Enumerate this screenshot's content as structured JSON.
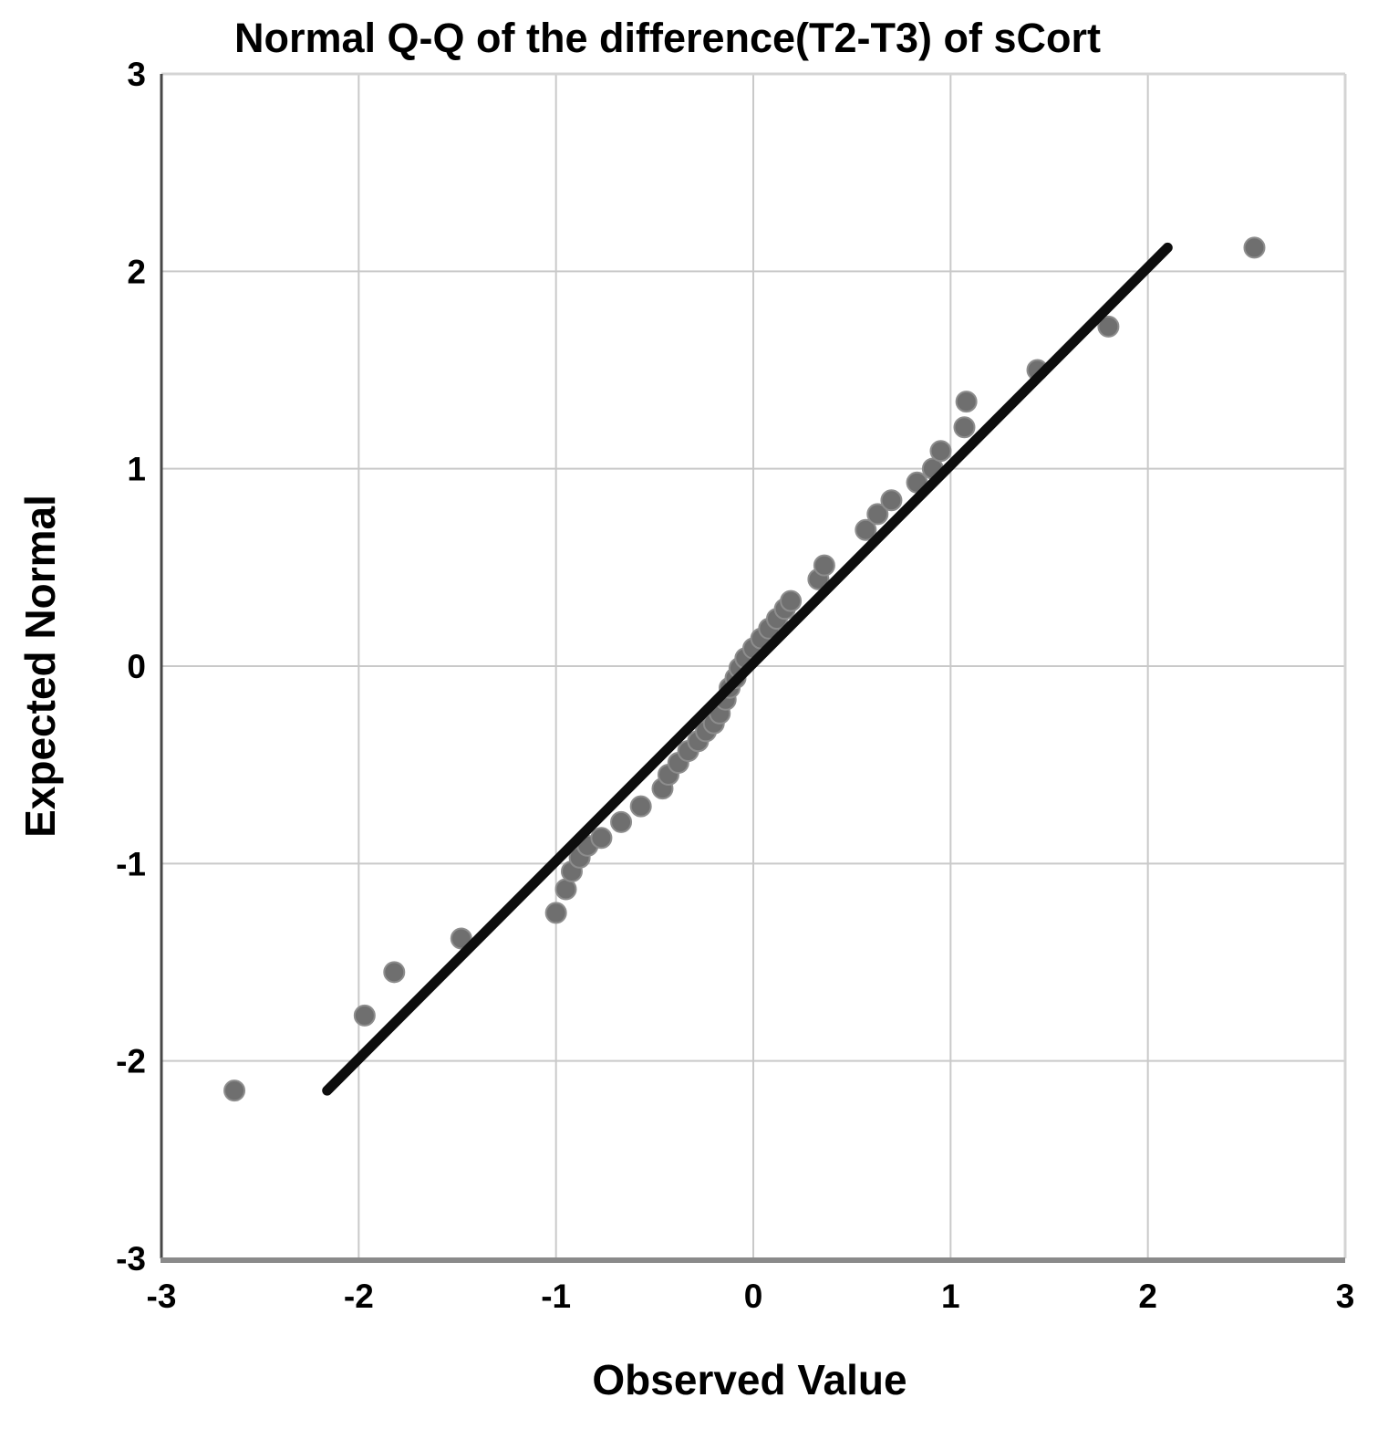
{
  "chart_data": {
    "type": "scatter",
    "title": "Normal Q-Q of the difference(T2-T3) of sCort",
    "xlabel": "Observed Value",
    "ylabel": "Expected Normal",
    "xlim": [
      -3,
      3
    ],
    "ylim": [
      -3,
      3
    ],
    "xticks": [
      "-3",
      "-2",
      "-1",
      "0",
      "1",
      "2",
      "3"
    ],
    "yticks": [
      "-3",
      "-2",
      "-1",
      "0",
      "1",
      "2",
      "3"
    ],
    "grid": true,
    "legend": "none",
    "series": [
      {
        "name": "observed-quantiles",
        "points": [
          [
            -2.63,
            -2.15
          ],
          [
            -1.97,
            -1.77
          ],
          [
            -1.82,
            -1.55
          ],
          [
            -1.48,
            -1.38
          ],
          [
            -1.0,
            -1.25
          ],
          [
            -0.95,
            -1.13
          ],
          [
            -0.92,
            -1.04
          ],
          [
            -0.88,
            -0.97
          ],
          [
            -0.84,
            -0.91
          ],
          [
            -0.77,
            -0.87
          ],
          [
            -0.67,
            -0.79
          ],
          [
            -0.57,
            -0.71
          ],
          [
            -0.46,
            -0.62
          ],
          [
            -0.43,
            -0.55
          ],
          [
            -0.38,
            -0.49
          ],
          [
            -0.33,
            -0.43
          ],
          [
            -0.28,
            -0.38
          ],
          [
            -0.24,
            -0.33
          ],
          [
            -0.2,
            -0.29
          ],
          [
            -0.17,
            -0.24
          ],
          [
            -0.14,
            -0.17
          ],
          [
            -0.12,
            -0.11
          ],
          [
            -0.09,
            -0.06
          ],
          [
            -0.07,
            -0.01
          ],
          [
            -0.04,
            0.04
          ],
          [
            0.0,
            0.09
          ],
          [
            0.04,
            0.14
          ],
          [
            0.08,
            0.19
          ],
          [
            0.12,
            0.24
          ],
          [
            0.16,
            0.29
          ],
          [
            0.19,
            0.33
          ],
          [
            0.33,
            0.44
          ],
          [
            0.36,
            0.51
          ],
          [
            0.57,
            0.69
          ],
          [
            0.63,
            0.77
          ],
          [
            0.7,
            0.84
          ],
          [
            0.83,
            0.93
          ],
          [
            0.91,
            1.0
          ],
          [
            0.95,
            1.09
          ],
          [
            1.07,
            1.21
          ],
          [
            1.08,
            1.34
          ],
          [
            1.44,
            1.5
          ],
          [
            1.8,
            1.72
          ],
          [
            2.54,
            2.12
          ]
        ]
      }
    ],
    "reference_line": {
      "from": [
        -2.16,
        -2.15
      ],
      "to": [
        2.1,
        2.12
      ]
    },
    "colors": {
      "point": "#6f6f6f",
      "point_edge": "#8d8d8d",
      "reference_line": "#0d0d0d",
      "grid": "#c9c9c9",
      "frame_light": "#d4d4d4",
      "axis_left": "#474747",
      "axis_bottom": "#8a8a8a",
      "text": "#000000",
      "background": "#ffffff"
    }
  }
}
